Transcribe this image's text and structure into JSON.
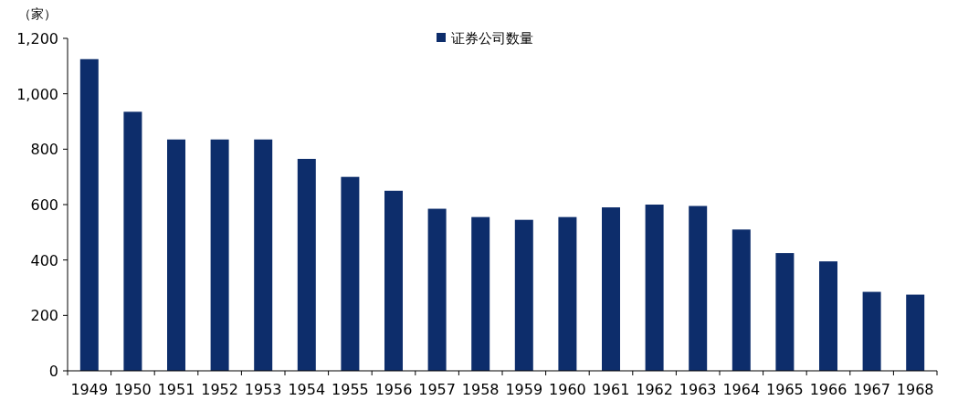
{
  "chart_data": {
    "type": "bar",
    "ylabel": "（家）",
    "categories": [
      "1949",
      "1950",
      "1951",
      "1952",
      "1953",
      "1954",
      "1955",
      "1956",
      "1957",
      "1958",
      "1959",
      "1960",
      "1961",
      "1962",
      "1963",
      "1964",
      "1965",
      "1966",
      "1967",
      "1968"
    ],
    "series": [
      {
        "name": "证券公司数量",
        "color": "#0d2d6b",
        "values": [
          1125,
          935,
          835,
          835,
          835,
          765,
          700,
          650,
          585,
          555,
          545,
          555,
          590,
          600,
          595,
          510,
          425,
          395,
          285,
          275
        ]
      }
    ],
    "ylim": [
      0,
      1200
    ],
    "yticks": [
      {
        "value": 0,
        "label": "0"
      },
      {
        "value": 200,
        "label": "200"
      },
      {
        "value": 400,
        "label": "400"
      },
      {
        "value": 600,
        "label": "600"
      },
      {
        "value": 800,
        "label": "800"
      },
      {
        "value": 1000,
        "label": "1,000"
      },
      {
        "value": 1200,
        "label": "1,200"
      }
    ],
    "legend": "top",
    "grid": false
  }
}
